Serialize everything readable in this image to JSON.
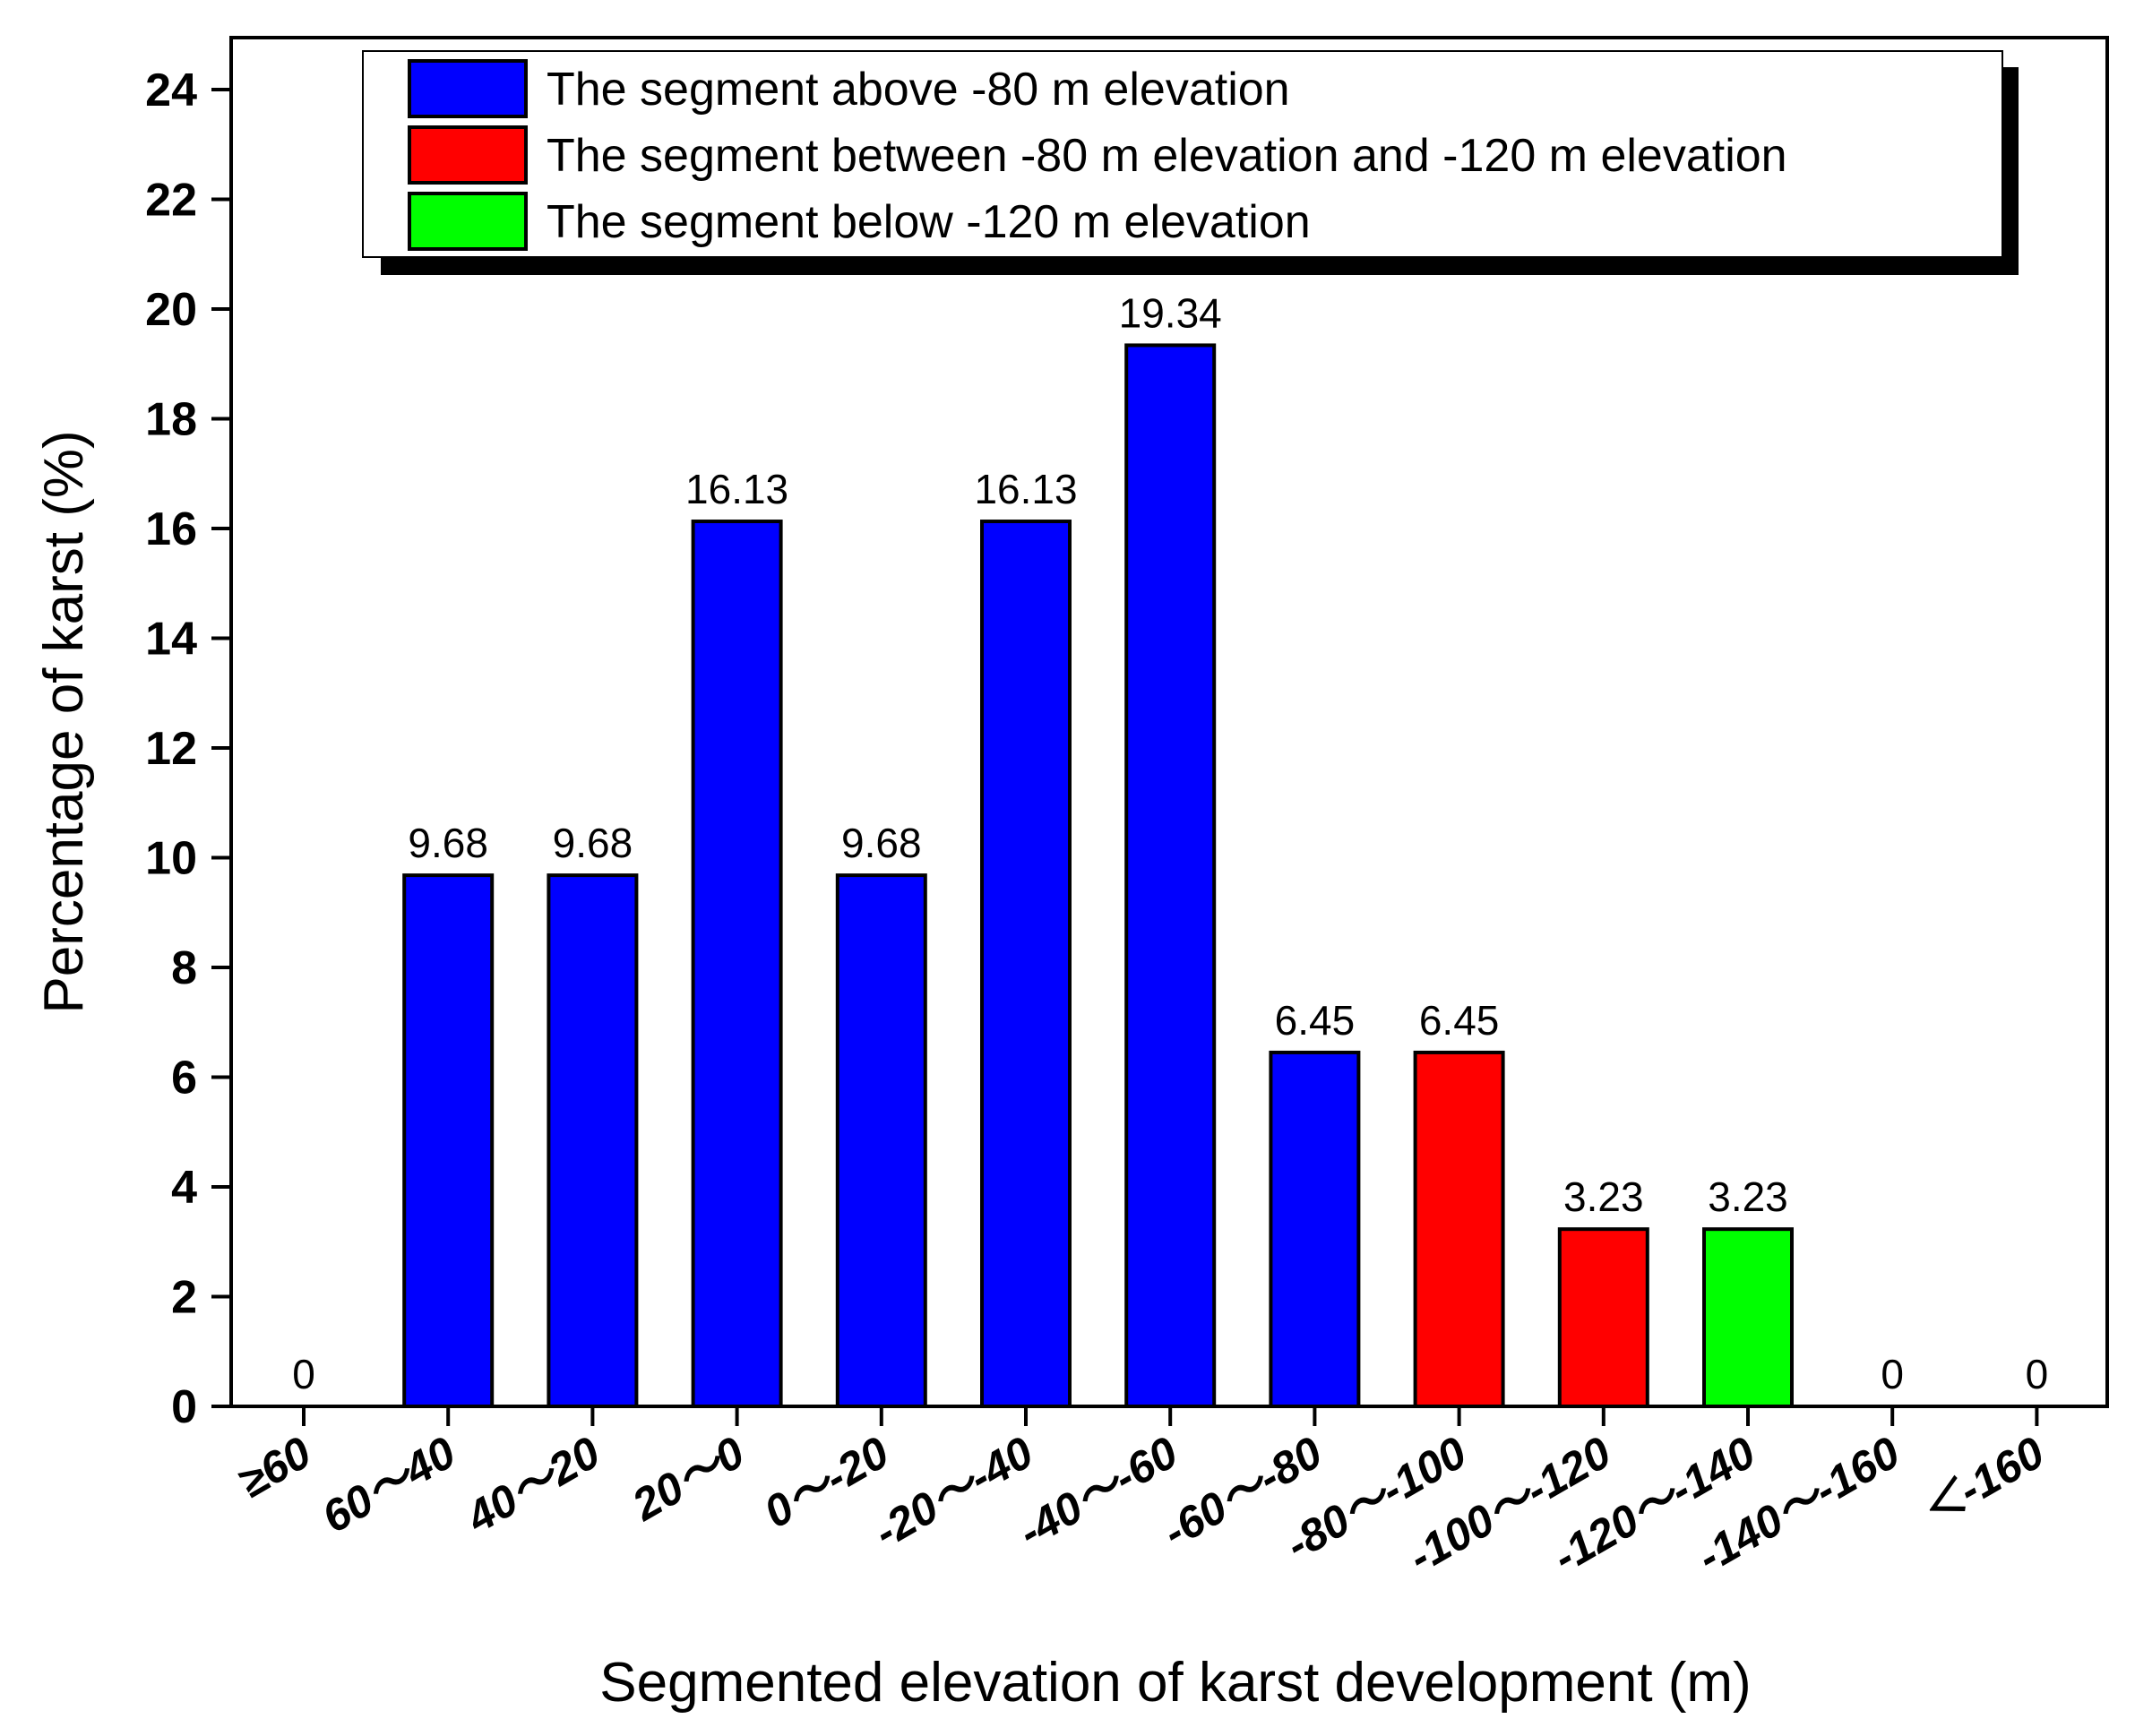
{
  "chart_data": {
    "type": "bar",
    "title": "",
    "xlabel": "Segmented elevation of karst development (m)",
    "ylabel": "Percentage of karst (%)",
    "ylim": [
      0,
      25
    ],
    "yticks": [
      0,
      2,
      4,
      6,
      8,
      10,
      12,
      14,
      16,
      18,
      20,
      22,
      24
    ],
    "categories": [
      "≥60",
      "60～40",
      "40～20",
      "20～0",
      "0～-20",
      "-20～-40",
      "-40～-60",
      "-60～-80",
      "-80～-100",
      "-100～-120",
      "-120～-140",
      "-140～-160",
      "＜-160"
    ],
    "values": [
      0,
      9.68,
      9.68,
      16.13,
      9.68,
      16.13,
      19.34,
      6.45,
      6.45,
      3.23,
      3.23,
      0,
      0
    ],
    "value_labels": [
      "0",
      "9.68",
      "9.68",
      "16.13",
      "9.68",
      "16.13",
      "19.34",
      "6.45",
      "6.45",
      "3.23",
      "3.23",
      "0",
      "0"
    ],
    "bar_series": [
      null,
      0,
      0,
      0,
      0,
      0,
      0,
      0,
      1,
      1,
      2,
      null,
      null
    ],
    "series": [
      {
        "name": "The segment above -80 m elevation",
        "color": "#0000ff"
      },
      {
        "name": "The segment between -80 m elevation and -120 m elevation",
        "color": "#ff0000"
      },
      {
        "name": "The segment below -120 m elevation",
        "color": "#00ff00"
      }
    ],
    "legend_position": "top-right",
    "grid": false
  }
}
